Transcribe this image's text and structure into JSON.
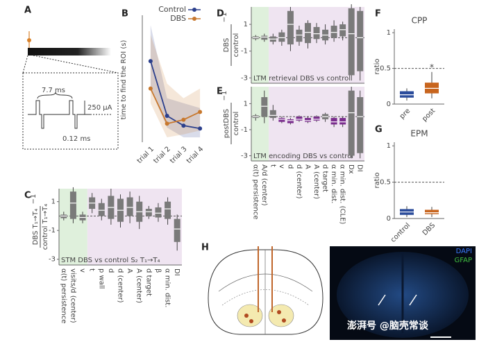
{
  "chart_data": [
    {
      "type": "line",
      "panel": "B",
      "ylabel": "time to find the ROI (s)",
      "categories": [
        "trial 1",
        "trial 2",
        "trial 3",
        "trial 4"
      ],
      "ylim": [
        0,
        130
      ],
      "yticks": [],
      "series": [
        {
          "name": "Control",
          "color": "#2b3f8c",
          "values": [
            83,
            27,
            17,
            14
          ],
          "low": [
            55,
            15,
            5,
            5
          ],
          "high": [
            120,
            45,
            40,
            35
          ]
        },
        {
          "name": "DBS",
          "color": "#c8782d",
          "values": [
            55,
            19,
            23,
            31
          ],
          "low": [
            40,
            5,
            8,
            12
          ],
          "high": [
            110,
            60,
            45,
            55
          ]
        }
      ]
    },
    {
      "type": "box",
      "panel": "C",
      "ylabel": {
        "numerator": "DBS T₁→T₄",
        "denominator": "control T₁→T₄",
        "exponent": "−1"
      },
      "caption": "STM DBS vs control S₂ T₁→T₄",
      "categories": [
        "α(t) persistence",
        "visits/d (center)",
        "v",
        "t",
        "p wall",
        "d",
        "d (center)",
        "A",
        "A (center)",
        "d target",
        "β",
        "α min. dist.",
        "DI"
      ],
      "ylim": [
        -3.4,
        1.9
      ],
      "yticks": [
        1,
        -1,
        -3
      ],
      "refline": 0,
      "colors": [
        "#7a7a7a",
        "#7a7a7a",
        "#7a7a7a",
        "#7a7a7a",
        "#7a7a7a",
        "#7a7a7a",
        "#7a7a7a",
        "#7a7a7a",
        "#7a7a7a",
        "#7a7a7a",
        "#7a7a7a",
        "#7a7a7a",
        "#7a7a7a"
      ],
      "boxes": [
        [
          -0.3,
          -0.15,
          0,
          0.1,
          0.3
        ],
        [
          -0.5,
          -0.2,
          0.9,
          1.7,
          2.0
        ],
        [
          -0.5,
          -0.3,
          -0.1,
          0.1,
          0.3
        ],
        [
          0.2,
          0.5,
          0.9,
          1.3,
          1.6
        ],
        [
          -0.3,
          0,
          0.4,
          0.9,
          1.2
        ],
        [
          -0.6,
          -0.2,
          0.6,
          1.4,
          1.9
        ],
        [
          -0.8,
          -0.4,
          0.4,
          1.2,
          1.5
        ],
        [
          -0.5,
          0,
          0.6,
          1.3,
          1.7
        ],
        [
          -0.9,
          -0.4,
          0.3,
          1.0,
          1.4
        ],
        [
          -0.2,
          0,
          0.3,
          0.5,
          0.7
        ],
        [
          -0.4,
          -0.1,
          0.2,
          0.6,
          0.9
        ],
        [
          -0.6,
          -0.2,
          0.5,
          1.0,
          1.3
        ],
        [
          -2.4,
          -1.8,
          -0.9,
          -0.2,
          0.1
        ]
      ]
    },
    {
      "type": "box",
      "panel": "D",
      "ylabel": {
        "numerator": "DBS",
        "denominator": "control",
        "exponent": "−1"
      },
      "caption": "LTM retrieval DBS vs control",
      "ylim": [
        -3.4,
        2.3
      ],
      "yticks": [
        1,
        -1,
        -3
      ],
      "refline": 0,
      "colors": [
        "#7a7a7a",
        "#7a7a7a",
        "#7a7a7a",
        "#7a7a7a",
        "#7a7a7a",
        "#7a7a7a",
        "#7a7a7a",
        "#7a7a7a",
        "#7a7a7a",
        "#7a7a7a",
        "#7a7a7a",
        "#7a7a7a",
        "#7a7a7a"
      ],
      "boxes": [
        [
          -0.2,
          -0.1,
          0,
          0.1,
          0.2
        ],
        [
          -0.3,
          -0.15,
          0.05,
          0.15,
          0.3
        ],
        [
          -0.5,
          -0.3,
          -0.1,
          0.1,
          0.3
        ],
        [
          -0.6,
          -0.3,
          0,
          0.4,
          0.6
        ],
        [
          -1,
          -0.5,
          1,
          2,
          2.3
        ],
        [
          -0.6,
          -0.3,
          0.2,
          0.6,
          0.9
        ],
        [
          -0.8,
          -0.4,
          0.4,
          1.1,
          1.3
        ],
        [
          -0.4,
          -0.1,
          0.3,
          0.8,
          1.1
        ],
        [
          -0.5,
          -0.2,
          0.2,
          0.6,
          1.0
        ],
        [
          -0.3,
          0,
          0.4,
          0.9,
          1.3
        ],
        [
          -0.2,
          0.1,
          0.6,
          1.0,
          1.2
        ],
        [
          -3.2,
          -2.8,
          0.3,
          2.2,
          2.5
        ],
        [
          -3.2,
          -2.5,
          0,
          2.0,
          2.3
        ]
      ]
    },
    {
      "type": "box",
      "panel": "E",
      "ylabel": {
        "numerator": "postDBS",
        "denominator": "control",
        "exponent": "−1"
      },
      "caption": "LTM encoding DBS vs control",
      "categories": [
        "α(t) persistence",
        "A/d (center)",
        "t",
        "v",
        "d",
        "d (center)",
        "A",
        "A (center)",
        "d target",
        "α min. dist.",
        "α min. dist. (CLE)",
        "Dx",
        "DI"
      ],
      "ylim": [
        -3.4,
        2.3
      ],
      "yticks": [
        1,
        -1,
        -3
      ],
      "refline": 0,
      "colors": [
        "#7a7a7a",
        "#7a7a7a",
        "#7a7a7a",
        "#7b2d8e",
        "#7b2d8e",
        "#7b2d8e",
        "#7b2d8e",
        "#7b2d8e",
        "#7a7a7a",
        "#7b2d8e",
        "#7b2d8e",
        "#7a7a7a",
        "#7a7a7a"
      ],
      "boxes": [
        [
          -0.3,
          -0.1,
          0,
          0.1,
          0.2
        ],
        [
          -0.5,
          0,
          0.8,
          1.5,
          2.0
        ],
        [
          -0.3,
          -0.1,
          0.1,
          0.5,
          0.9
        ],
        [
          -0.5,
          -0.4,
          -0.2,
          -0.1,
          0
        ],
        [
          -0.6,
          -0.5,
          -0.3,
          -0.2,
          -0.1
        ],
        [
          -0.4,
          -0.3,
          -0.2,
          0,
          0.1
        ],
        [
          -0.5,
          -0.4,
          -0.3,
          -0.1,
          0
        ],
        [
          -0.4,
          -0.3,
          -0.2,
          0,
          0.1
        ],
        [
          -0.4,
          -0.2,
          0,
          0.2,
          0.3
        ],
        [
          -0.8,
          -0.6,
          -0.4,
          -0.1,
          0
        ],
        [
          -0.8,
          -0.6,
          -0.4,
          -0.1,
          0
        ],
        [
          -3.2,
          -3.0,
          0.3,
          2.0,
          2.3
        ],
        [
          -3.2,
          -2.8,
          0,
          1.5,
          2.0
        ]
      ]
    },
    {
      "type": "box",
      "panel": "F",
      "title": "CPP",
      "ylabel": "ratio",
      "annotation": "*",
      "categories": [
        "pre",
        "post"
      ],
      "ylim": [
        0,
        1.05
      ],
      "yticks": [
        0,
        0.5,
        1
      ],
      "refline": 0.5,
      "colors": [
        "#2b4c9b",
        "#c8651e"
      ],
      "boxes": [
        [
          0.05,
          0.09,
          0.13,
          0.18,
          0.22
        ],
        [
          0.08,
          0.15,
          0.22,
          0.3,
          0.45
        ]
      ]
    },
    {
      "type": "box",
      "panel": "G",
      "title": "EPM",
      "ylabel": "ratio",
      "categories": [
        "control",
        "DBS"
      ],
      "ylim": [
        0,
        1.05
      ],
      "yticks": [
        0,
        0.5,
        1
      ],
      "refline": 0.5,
      "colors": [
        "#2b4c9b",
        "#c8651e"
      ],
      "boxes": [
        [
          0.02,
          0.05,
          0.09,
          0.13,
          0.17
        ],
        [
          0.02,
          0.06,
          0.08,
          0.12,
          0.16
        ]
      ]
    }
  ],
  "diagram_a": {
    "panel": "A",
    "width_label": "7.7 ms",
    "amplitude_label": "250 µA",
    "pulse_label": "0.12 ms"
  },
  "figure_h": {
    "panel": "H",
    "stain_1": "DAPI",
    "stain_2": "GFAP",
    "watermark": "澎湃号 @脑壳常谈"
  }
}
